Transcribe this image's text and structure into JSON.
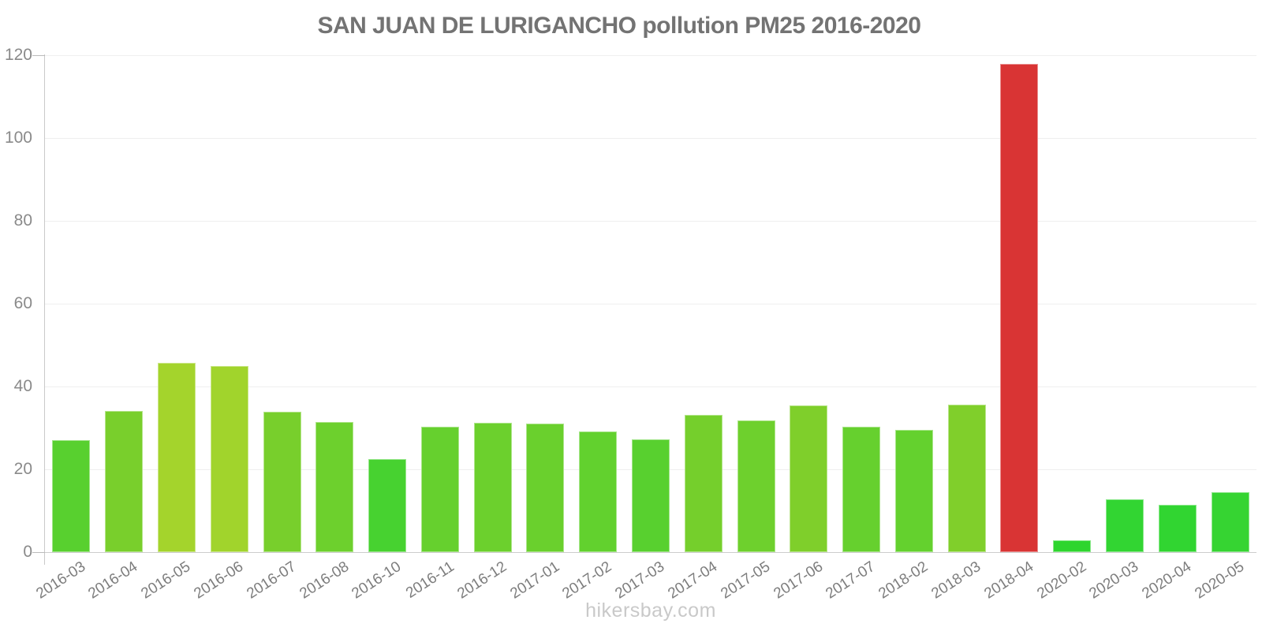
{
  "chart_data": {
    "type": "bar",
    "title": "SAN JUAN DE LURIGANCHO pollution PM25 2016-2020",
    "categories": [
      "2016-03",
      "2016-04",
      "2016-05",
      "2016-06",
      "2016-07",
      "2016-08",
      "2016-10",
      "2016-11",
      "2016-12",
      "2017-01",
      "2017-02",
      "2017-03",
      "2017-04",
      "2017-05",
      "2017-06",
      "2017-07",
      "2018-02",
      "2018-03",
      "2018-04",
      "2020-02",
      "2020-03",
      "2020-04",
      "2020-05"
    ],
    "values": [
      27,
      34.1,
      45.7,
      44.9,
      34,
      31.5,
      22.4,
      30.2,
      31.3,
      31,
      29.2,
      27.3,
      33.2,
      31.9,
      35.5,
      30.2,
      29.6,
      35.7,
      118,
      2.8,
      12.8,
      11.4,
      14.4
    ],
    "bar_colors": [
      "#58d02f",
      "#79cf2c",
      "#a4d42c",
      "#a1d42c",
      "#78cf2c",
      "#6dd02d",
      "#47d230",
      "#66d02e",
      "#6cd02d",
      "#6ad02d",
      "#62d12e",
      "#58d02f",
      "#75cf2c",
      "#6ed02d",
      "#7fcf2b",
      "#66d02e",
      "#64d12e",
      "#80cf2b",
      "#d93434",
      "#2ed52e",
      "#32d532",
      "#31d531",
      "#36d432"
    ],
    "highlight_category": "2018-04",
    "highlight_color": "#d93434",
    "xlabel": "",
    "ylabel": "",
    "ylim": [
      0,
      120
    ],
    "yticks": [
      0,
      20,
      40,
      60,
      80,
      100,
      120
    ],
    "grid": "horizontal",
    "legend": "none"
  },
  "footer": {
    "text": "hikersbay.com"
  },
  "colors": {
    "title": "#737373",
    "axis_line": "#c9c9c9",
    "grid_line": "#efefef",
    "y_tick_label": "#8a8a8a",
    "x_tick_label": "#7d7d7d",
    "watermark": "#c9c9c9"
  }
}
